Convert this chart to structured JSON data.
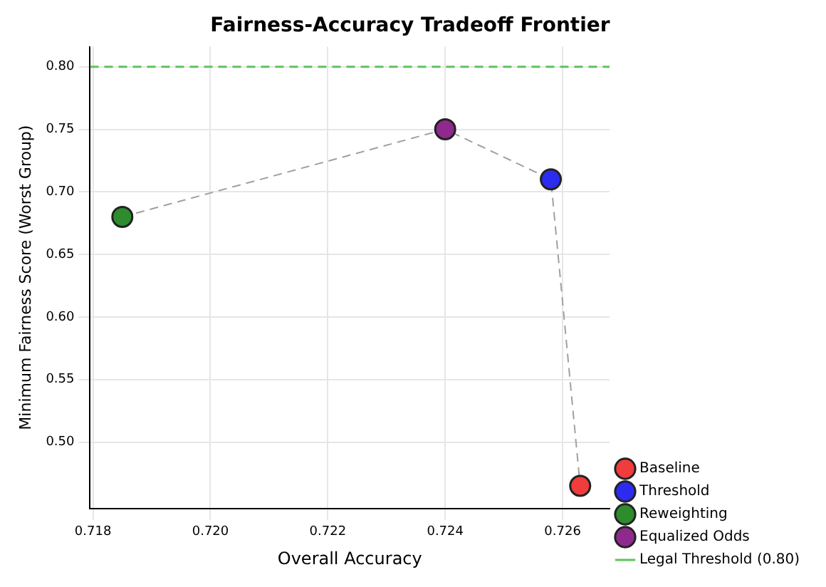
{
  "chart_data": {
    "type": "scatter",
    "title": "Fairness-Accuracy Tradeoff Frontier",
    "xlabel": "Overall Accuracy",
    "ylabel": "Minimum Fairness Score (Worst Group)",
    "xlim": [
      0.71795,
      0.7268
    ],
    "xticks": [
      0.718,
      {
        "value": 0.72,
        "label": "0.720"
      },
      0.722,
      0.724,
      0.726
    ],
    "ylim": [
      0.447,
      0.816
    ],
    "yticks": [
      {
        "value": 0.5,
        "label": "0.50"
      },
      0.55,
      {
        "value": 0.6,
        "label": "0.60"
      },
      0.65,
      {
        "value": 0.7,
        "label": "0.70"
      },
      0.75,
      {
        "value": 0.8,
        "label": "0.80"
      }
    ],
    "grid": true,
    "legend": "bottom right",
    "series": [
      {
        "type": "line",
        "color": "#a0a0a0",
        "line_style": "dashed",
        "marker": "none",
        "x": [
          0.7185,
          0.724,
          0.7258,
          0.7263
        ],
        "values": [
          0.68,
          0.75,
          0.71,
          0.465
        ]
      },
      {
        "name": "Baseline",
        "marker": "circle",
        "color": "#f03c3c",
        "x": [
          0.7263
        ],
        "values": [
          0.465
        ]
      },
      {
        "name": "Threshold",
        "marker": "circle",
        "color": "#2c2cf0",
        "x": [
          0.7258
        ],
        "values": [
          0.71
        ]
      },
      {
        "name": "Reweighting",
        "marker": "circle",
        "color": "#2e8b2e",
        "x": [
          0.7185
        ],
        "values": [
          0.68
        ]
      },
      {
        "name": "Equalized Odds",
        "marker": "circle",
        "color": "#8e2a8e",
        "x": [
          0.724
        ],
        "values": [
          0.75
        ]
      }
    ],
    "ref_lines": [
      {
        "axis": "y",
        "value": 0.8,
        "label": "Legal Threshold (0.80)",
        "color": "#5cc45c",
        "line_style": "dashed"
      }
    ]
  }
}
